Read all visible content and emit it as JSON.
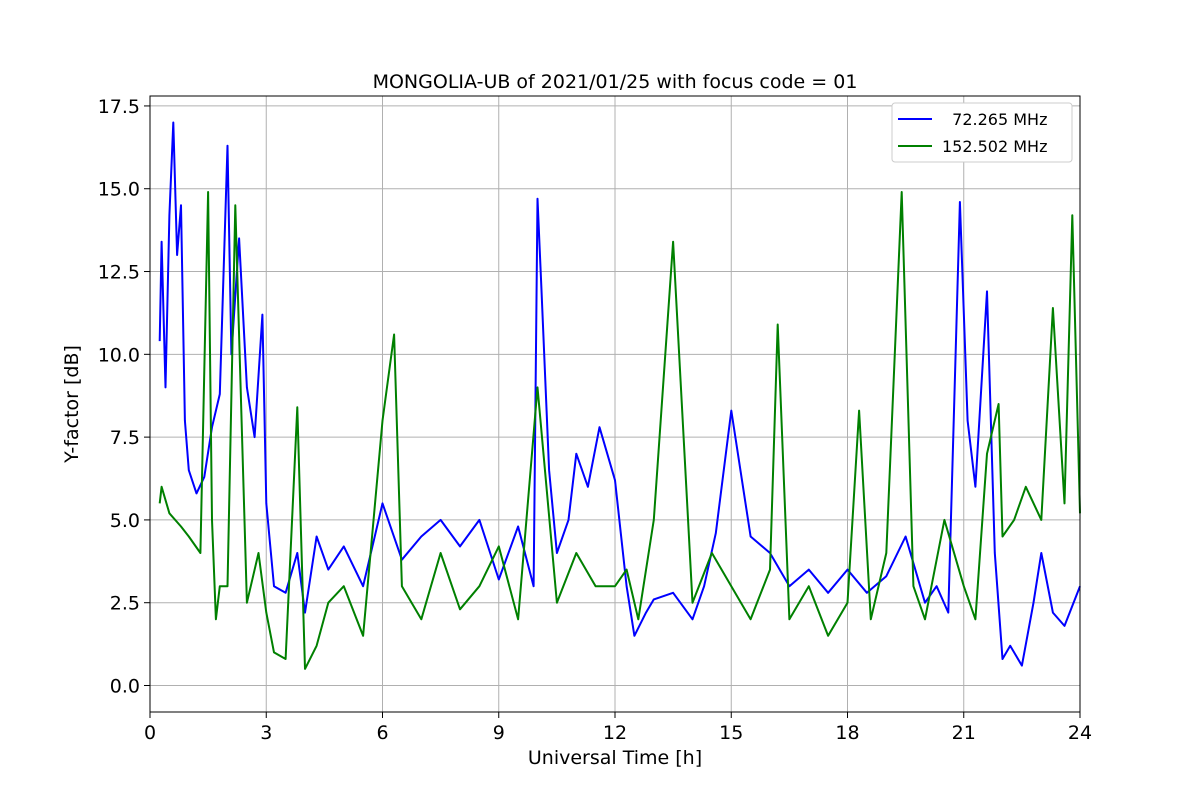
{
  "chart_data": {
    "type": "line",
    "title": "MONGOLIA-UB of 2021/01/25 with focus code = 01",
    "xlabel": "Universal Time [h]",
    "ylabel": "Y-factor [dB]",
    "xlim": [
      0,
      24
    ],
    "ylim": [
      -0.8,
      17.8
    ],
    "grid": true,
    "legend_position": "top-right",
    "xticks": [
      0,
      3,
      6,
      9,
      12,
      15,
      18,
      21,
      24
    ],
    "xtick_labels": [
      "0",
      "3",
      "6",
      "9",
      "12",
      "15",
      "18",
      "21",
      "24"
    ],
    "yticks": [
      0,
      2.5,
      5,
      7.5,
      10,
      12.5,
      15,
      17.5
    ],
    "ytick_labels": [
      "0.0",
      "2.5",
      "5.0",
      "7.5",
      "10.0",
      "12.5",
      "15.0",
      "17.5"
    ],
    "series": [
      {
        "name": "  72.265 MHz",
        "color": "#0000ff",
        "x": [
          0.25,
          0.3,
          0.4,
          0.5,
          0.6,
          0.7,
          0.8,
          0.9,
          1.0,
          1.2,
          1.4,
          1.6,
          1.8,
          2.0,
          2.1,
          2.3,
          2.5,
          2.7,
          2.9,
          3.0,
          3.2,
          3.5,
          3.8,
          4.0,
          4.3,
          4.6,
          5.0,
          5.5,
          6.0,
          6.5,
          7.0,
          7.5,
          8.0,
          8.5,
          9.0,
          9.5,
          9.9,
          10.0,
          10.1,
          10.3,
          10.5,
          10.8,
          11.0,
          11.3,
          11.6,
          12.0,
          12.3,
          12.5,
          12.8,
          13.0,
          13.5,
          14.0,
          14.3,
          14.6,
          15.0,
          15.5,
          16.0,
          16.5,
          17.0,
          17.5,
          18.0,
          18.5,
          19.0,
          19.5,
          20.0,
          20.3,
          20.6,
          20.9,
          21.1,
          21.3,
          21.6,
          21.8,
          22.0,
          22.2,
          22.5,
          22.8,
          23.0,
          23.3,
          23.6,
          24.0
        ],
        "y": [
          10.4,
          13.4,
          9.0,
          14.2,
          17.0,
          13.0,
          14.5,
          8.0,
          6.5,
          5.8,
          6.3,
          7.8,
          8.8,
          16.3,
          10.0,
          13.5,
          9.0,
          7.5,
          11.2,
          5.5,
          3.0,
          2.8,
          4.0,
          2.2,
          4.5,
          3.5,
          4.2,
          3.0,
          5.5,
          3.8,
          4.5,
          5.0,
          4.2,
          5.0,
          3.2,
          4.8,
          3.0,
          14.7,
          12.0,
          6.5,
          4.0,
          5.0,
          7.0,
          6.0,
          7.8,
          6.2,
          3.0,
          1.5,
          2.2,
          2.6,
          2.8,
          2.0,
          3.0,
          4.6,
          8.3,
          4.5,
          4.0,
          3.0,
          3.5,
          2.8,
          3.5,
          2.8,
          3.3,
          4.5,
          2.5,
          3.0,
          2.2,
          14.6,
          8.0,
          6.0,
          11.9,
          4.0,
          0.8,
          1.2,
          0.6,
          2.5,
          4.0,
          2.2,
          1.8,
          3.0
        ]
      },
      {
        "name": "152.502 MHz",
        "color": "#008000",
        "x": [
          0.25,
          0.3,
          0.5,
          0.8,
          1.0,
          1.3,
          1.5,
          1.6,
          1.7,
          1.8,
          2.0,
          2.2,
          2.5,
          2.8,
          3.0,
          3.2,
          3.5,
          3.8,
          4.0,
          4.3,
          4.6,
          5.0,
          5.5,
          6.0,
          6.3,
          6.5,
          7.0,
          7.5,
          8.0,
          8.5,
          9.0,
          9.5,
          10.0,
          10.5,
          11.0,
          11.5,
          12.0,
          12.3,
          12.6,
          13.0,
          13.5,
          14.0,
          14.5,
          15.0,
          15.5,
          16.0,
          16.2,
          16.5,
          17.0,
          17.5,
          18.0,
          18.3,
          18.6,
          19.0,
          19.4,
          19.7,
          20.0,
          20.5,
          21.0,
          21.3,
          21.6,
          21.9,
          22.0,
          22.3,
          22.6,
          23.0,
          23.3,
          23.6,
          23.8,
          24.0
        ],
        "y": [
          5.5,
          6.0,
          5.2,
          4.8,
          4.5,
          4.0,
          14.9,
          5.0,
          2.0,
          3.0,
          3.0,
          14.5,
          2.5,
          4.0,
          2.2,
          1.0,
          0.8,
          8.4,
          0.5,
          1.2,
          2.5,
          3.0,
          1.5,
          8.0,
          10.6,
          3.0,
          2.0,
          4.0,
          2.3,
          3.0,
          4.2,
          2.0,
          9.0,
          2.5,
          4.0,
          3.0,
          3.0,
          3.5,
          2.0,
          5.0,
          13.4,
          2.5,
          4.0,
          3.0,
          2.0,
          3.5,
          10.9,
          2.0,
          3.0,
          1.5,
          2.5,
          8.3,
          2.0,
          4.0,
          14.9,
          3.0,
          2.0,
          5.0,
          3.0,
          2.0,
          7.0,
          8.5,
          4.5,
          5.0,
          6.0,
          5.0,
          11.4,
          5.5,
          14.2,
          5.2
        ]
      }
    ]
  }
}
